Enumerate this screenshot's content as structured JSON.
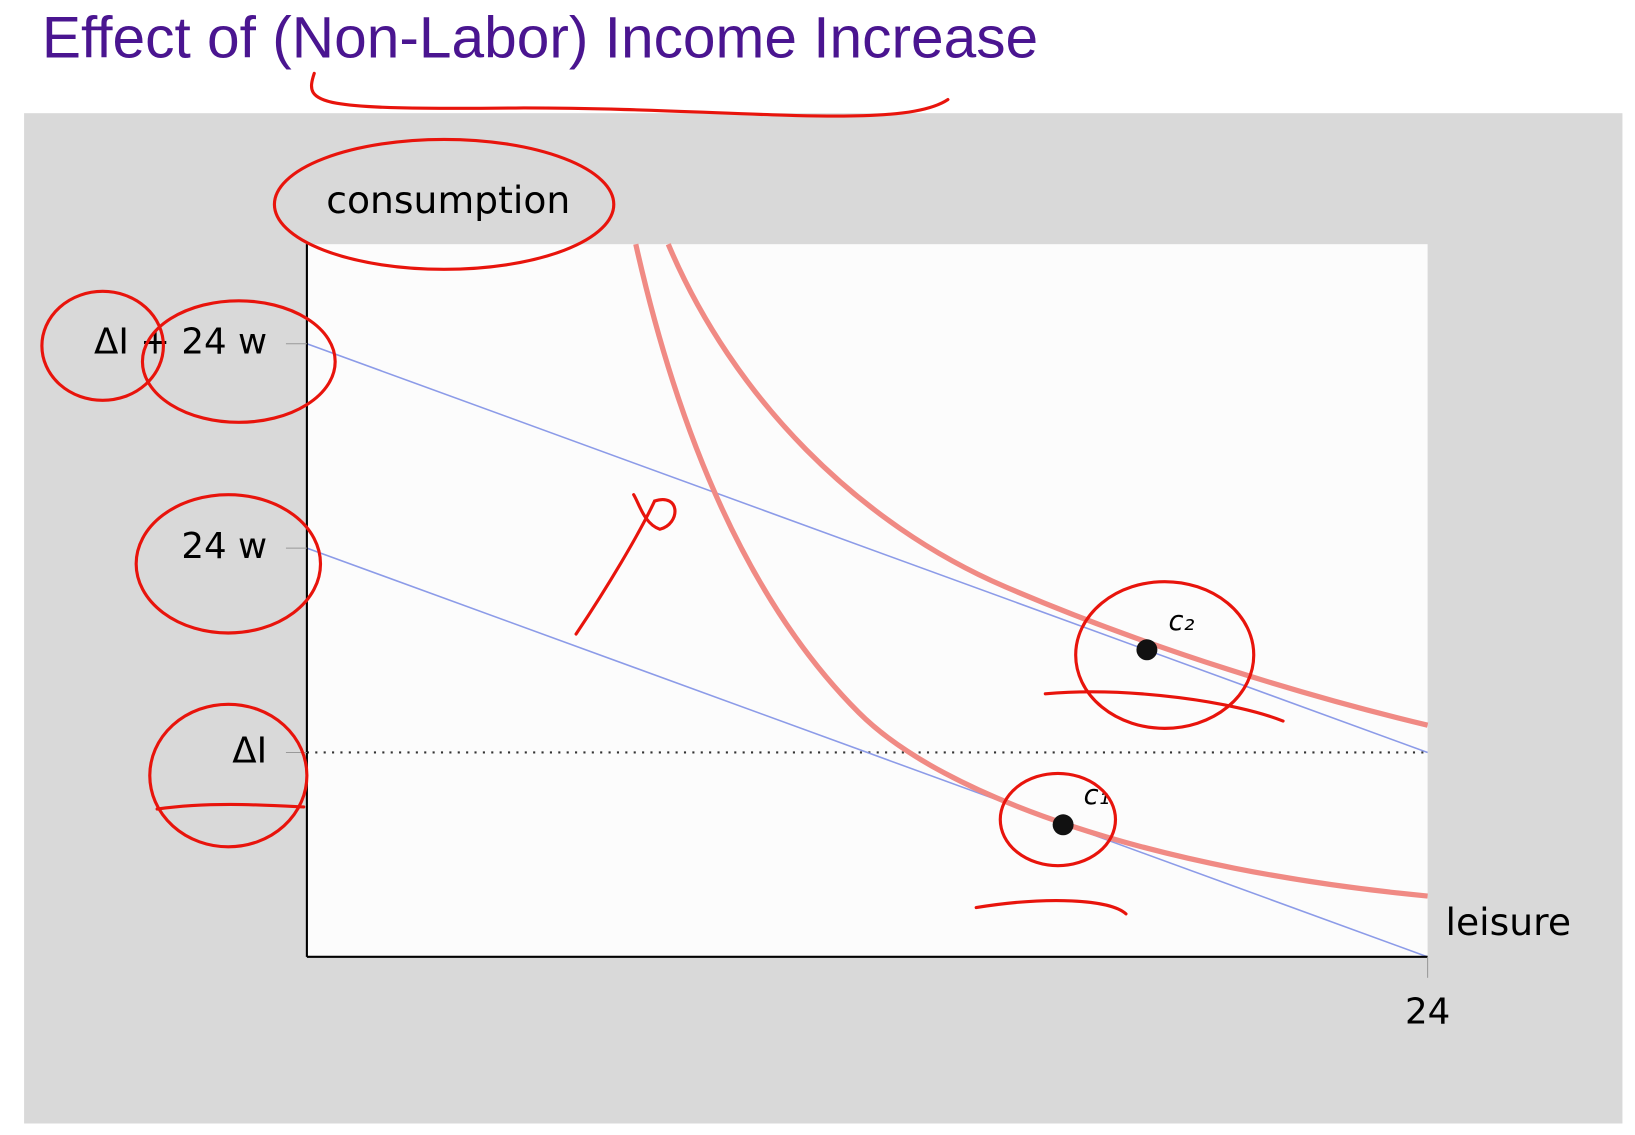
{
  "title": "Effect of (Non-Labor) Income Increase",
  "diagram": {
    "y_axis_label": "consumption",
    "x_axis_label": "leisure",
    "y_ticks": [
      "ΔI + 24 w",
      "24 w",
      "ΔI"
    ],
    "x_ticks": [
      "24"
    ],
    "points": [
      {
        "label": "c₂"
      },
      {
        "label": "c₁"
      }
    ]
  }
}
